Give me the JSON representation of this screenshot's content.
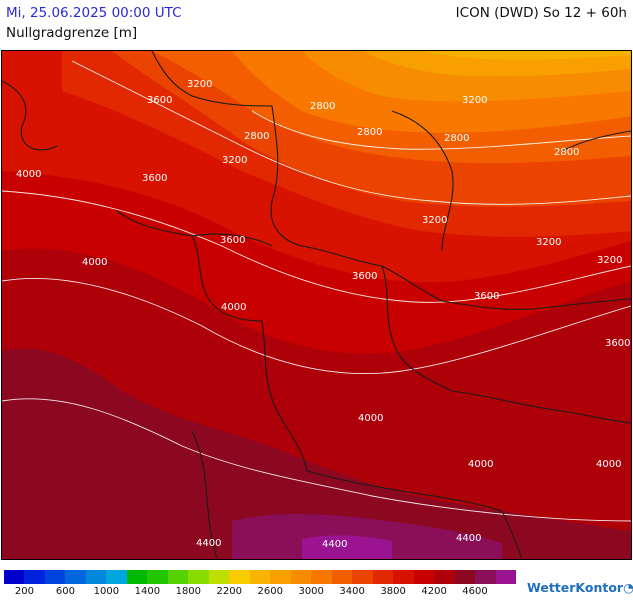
{
  "header": {
    "datetime": "Mi, 25.06.2025 00:00 UTC",
    "model": "ICON (DWD) So 12 + 60h",
    "parameter": "Nullgradgrenze [m]"
  },
  "map": {
    "contour_labels": [
      "3200",
      "3600",
      "2800",
      "4000",
      "4400"
    ],
    "region_colors": {
      "band_2400": "#f8b000",
      "band_2600": "#f8a000",
      "band_2800": "#f88c00",
      "band_3000": "#f87800",
      "band_3200": "#f35e00",
      "band_3400": "#ea4400",
      "band_3600": "#e22800",
      "band_3800": "#d81200",
      "band_4000": "#c80000",
      "band_4200": "#ae0008",
      "band_4400": "#8c0820",
      "band_4600": "#8a0e58",
      "band_4800": "#9a1390"
    }
  },
  "legend": {
    "colors": [
      "#0000cc",
      "#0022dd",
      "#0044e0",
      "#0066dd",
      "#0088dd",
      "#00a6dd",
      "#00b800",
      "#22c600",
      "#55d200",
      "#88dc00",
      "#bde000",
      "#f8cc00",
      "#f8b400",
      "#f8a000",
      "#f88c00",
      "#f87800",
      "#f35e00",
      "#ea4400",
      "#e22800",
      "#d81200",
      "#c80000",
      "#ae0008",
      "#8c0820",
      "#8a0e58",
      "#9a1390"
    ],
    "ticks": [
      "200",
      "600",
      "1000",
      "1400",
      "1800",
      "2200",
      "2600",
      "3000",
      "3400",
      "3800",
      "4200",
      "4600"
    ]
  },
  "branding": {
    "logo_text": "WetterKontor",
    "logo_mark": "◔"
  }
}
